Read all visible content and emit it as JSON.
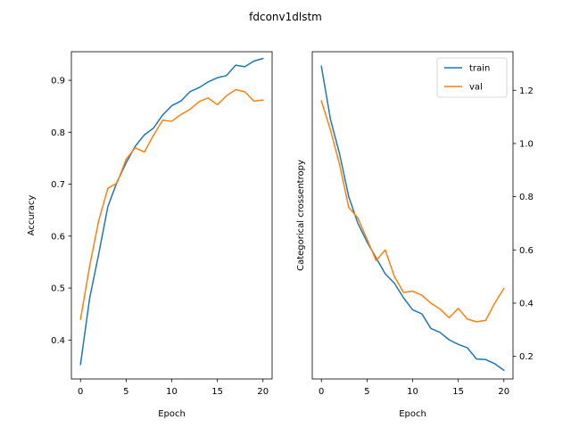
{
  "figure": {
    "suptitle": "fdconv1dlstm"
  },
  "chart_data": [
    {
      "type": "line",
      "xlabel": "Epoch",
      "ylabel": "Accuracy",
      "xlim": [
        -1,
        21
      ],
      "ylim": [
        0.325,
        0.955
      ],
      "xticks": [
        0,
        5,
        10,
        15,
        20
      ],
      "yticks": [
        0.4,
        0.5,
        0.6,
        0.7,
        0.8,
        0.9
      ],
      "ytick_side": "left",
      "grid": false,
      "legend": null,
      "x": [
        0,
        1,
        2,
        3,
        4,
        5,
        6,
        7,
        8,
        9,
        10,
        11,
        12,
        13,
        14,
        15,
        16,
        17,
        18,
        19,
        20
      ],
      "series": [
        {
          "name": "train",
          "color": "#1f77b4",
          "values": [
            0.353,
            0.48,
            0.566,
            0.657,
            0.704,
            0.741,
            0.773,
            0.795,
            0.808,
            0.833,
            0.851,
            0.86,
            0.878,
            0.886,
            0.897,
            0.905,
            0.909,
            0.929,
            0.926,
            0.937,
            0.942
          ]
        },
        {
          "name": "val",
          "color": "#ff7f0e",
          "values": [
            0.44,
            0.542,
            0.63,
            0.692,
            0.702,
            0.748,
            0.77,
            0.762,
            0.794,
            0.823,
            0.821,
            0.834,
            0.844,
            0.859,
            0.866,
            0.853,
            0.87,
            0.882,
            0.878,
            0.86,
            0.862
          ]
        }
      ]
    },
    {
      "type": "line",
      "xlabel": "Epoch",
      "ylabel": "Categorical crossentropy",
      "xlim": [
        -1,
        21
      ],
      "ylim": [
        0.115,
        1.345
      ],
      "xticks": [
        0,
        5,
        10,
        15,
        20
      ],
      "yticks": [
        0.2,
        0.4,
        0.6,
        0.8,
        1.0,
        1.2
      ],
      "ytick_side": "right",
      "grid": false,
      "legend": "upper right",
      "x": [
        0,
        1,
        2,
        3,
        4,
        5,
        6,
        7,
        8,
        9,
        10,
        11,
        12,
        13,
        14,
        15,
        16,
        17,
        18,
        19,
        20
      ],
      "series": [
        {
          "name": "train",
          "color": "#1f77b4",
          "values": [
            1.29,
            1.09,
            0.96,
            0.8,
            0.7,
            0.63,
            0.57,
            0.51,
            0.475,
            0.42,
            0.375,
            0.36,
            0.305,
            0.29,
            0.262,
            0.245,
            0.232,
            0.19,
            0.188,
            0.172,
            0.148
          ]
        },
        {
          "name": "val",
          "color": "#ff7f0e",
          "values": [
            1.16,
            1.05,
            0.92,
            0.76,
            0.72,
            0.64,
            0.56,
            0.6,
            0.5,
            0.44,
            0.445,
            0.43,
            0.4,
            0.378,
            0.345,
            0.38,
            0.34,
            0.33,
            0.335,
            0.4,
            0.455
          ]
        }
      ]
    }
  ]
}
